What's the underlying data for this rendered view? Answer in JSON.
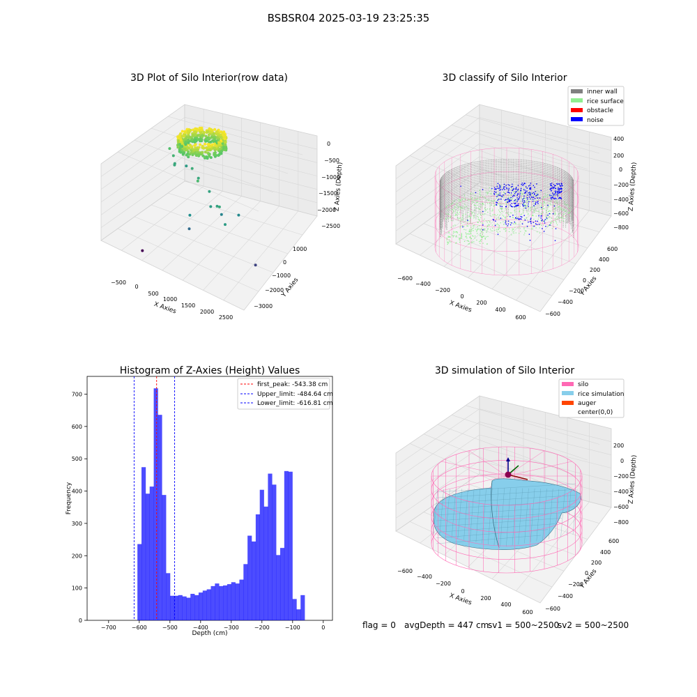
{
  "figure": {
    "suptitle": "BSBSR04 2025-03-19 23:25:35",
    "status_line": {
      "flag": "flag = 0",
      "avg_depth": "avgDepth = 447 cm",
      "sv1": "sv1 = 500~2500",
      "sv2": "sv2 = 500~2500"
    }
  },
  "chart_data": [
    {
      "id": "raw3d",
      "type": "scatter",
      "projection": "3d",
      "title": "3D Plot of Silo Interior(row data)",
      "xlabel": "X Axies",
      "ylabel": "Y Axies",
      "zlabel": "Z Axies (Depth)",
      "xticks": [
        "−500",
        "0",
        "500",
        "1000",
        "1500",
        "2000",
        "2500"
      ],
      "yticks": [
        "1000",
        "0",
        "−1000",
        "−2000",
        "−3000"
      ],
      "zticks": [
        "0",
        "−500",
        "−1000",
        "−1500",
        "−2000",
        "−2500"
      ],
      "xlim": [
        -700,
        2700
      ],
      "ylim": [
        -3300,
        1300
      ],
      "zlim": [
        -2800,
        100
      ],
      "colormap": [
        "#440154",
        "#3b528b",
        "#21908d",
        "#5dc963",
        "#fde725"
      ],
      "points_outliers": [
        {
          "x": -350,
          "y": -300,
          "z": -600,
          "c": 0.7
        },
        {
          "x": -300,
          "y": -200,
          "z": -900,
          "c": 0.65
        },
        {
          "x": -250,
          "y": -250,
          "z": -1200,
          "c": 0.6
        },
        {
          "x": -400,
          "y": 100,
          "z": -1400,
          "c": 0.6
        },
        {
          "x": -200,
          "y": 300,
          "z": -1500,
          "c": 0.55
        },
        {
          "x": 300,
          "y": -500,
          "z": -900,
          "c": 0.62
        },
        {
          "x": 500,
          "y": -600,
          "z": -1100,
          "c": 0.6
        },
        {
          "x": 700,
          "y": -1100,
          "z": -800,
          "c": 0.68
        },
        {
          "x": 900,
          "y": -900,
          "z": -1200,
          "c": 0.58
        },
        {
          "x": 1100,
          "y": -1300,
          "z": -1400,
          "c": 0.55
        },
        {
          "x": 800,
          "y": -1800,
          "z": -1600,
          "c": 0.5
        },
        {
          "x": 1400,
          "y": -1500,
          "z": -1100,
          "c": 0.6
        },
        {
          "x": 1300,
          "y": -1400,
          "z": -1200,
          "c": 0.58
        },
        {
          "x": 1700,
          "y": -1900,
          "z": -1300,
          "c": 0.55
        },
        {
          "x": 1200,
          "y": -900,
          "z": -1900,
          "c": 0.45
        },
        {
          "x": 1500,
          "y": -600,
          "z": -1950,
          "c": 0.47
        },
        {
          "x": 700,
          "y": -1600,
          "z": -2300,
          "c": 0.35
        },
        {
          "x": 2400,
          "y": -1800,
          "z": -2450,
          "c": 0.2
        },
        {
          "x": 200,
          "y": -3100,
          "z": -2600,
          "c": 0.0
        }
      ]
    },
    {
      "id": "classify3d",
      "type": "scatter",
      "projection": "3d",
      "title": "3D classify of Silo Interior",
      "xlabel": "X Axies",
      "ylabel": "Y Axies",
      "zlabel": "Z Axies (Depth)",
      "xticks": [
        "−600",
        "−400",
        "−200",
        "0",
        "200",
        "400",
        "600"
      ],
      "yticks": [
        "600",
        "400",
        "200",
        "0",
        "−200",
        "−400",
        "−600"
      ],
      "zticks": [
        "400",
        "200",
        "0",
        "−200",
        "−400",
        "−600",
        "−800"
      ],
      "legend": [
        {
          "label": "inner wall",
          "color": "#808080"
        },
        {
          "label": "rice surface",
          "color": "#90ee90"
        },
        {
          "label": "obstacle",
          "color": "#ff0000"
        },
        {
          "label": "noise",
          "color": "#0000ff"
        }
      ],
      "legend_placement": "top-right",
      "wireframe_color": "#ff69b4"
    },
    {
      "id": "hist",
      "type": "bar",
      "title": "Histogram of Z-Axies (Height) Values",
      "xlabel": "Depth (cm)",
      "ylabel": "Frequency",
      "xlim": [
        -770,
        30
      ],
      "ylim": [
        0,
        755
      ],
      "xticks": [
        -700,
        -600,
        -500,
        -400,
        -300,
        -200,
        -100,
        0
      ],
      "xtick_labels": [
        "−700",
        "−600",
        "−500",
        "−400",
        "−300",
        "−200",
        "−100",
        "0"
      ],
      "yticks": [
        0,
        100,
        200,
        300,
        400,
        500,
        600,
        700
      ],
      "bar_color": "#0000ff",
      "bar_alpha": 0.7,
      "bin_edges_start": -606,
      "bin_width": 13.3,
      "values": [
        236,
        474,
        392,
        414,
        718,
        636,
        388,
        146,
        76,
        76,
        78,
        74,
        70,
        82,
        78,
        86,
        92,
        96,
        106,
        114,
        106,
        108,
        112,
        118,
        114,
        126,
        174,
        262,
        244,
        328,
        404,
        352,
        454,
        420,
        202,
        224,
        462,
        460,
        66,
        34,
        78
      ],
      "vlines": [
        {
          "x": -543.38,
          "label": "first_peak: -543.38 cm",
          "color": "#ff0000",
          "style": "dashed"
        },
        {
          "x": -484.64,
          "label": "Upper_limit: -484.64 cm",
          "color": "#0000ff",
          "style": "dashed"
        },
        {
          "x": -616.81,
          "label": "Lower_limit: -616.81 cm",
          "color": "#0000ff",
          "style": "dashed"
        }
      ],
      "legend_placement": "top-right"
    },
    {
      "id": "sim3d",
      "type": "surface",
      "projection": "3d",
      "title": "3D simulation of Silo Interior",
      "xlabel": "X Axies",
      "ylabel": "Y Axies",
      "zlabel": "Z Axies (Depth)",
      "xticks": [
        "−600",
        "−400",
        "−200",
        "0",
        "200",
        "400",
        "600"
      ],
      "yticks": [
        "600",
        "400",
        "200",
        "0",
        "−200",
        "−400",
        "−600"
      ],
      "zticks": [
        "200",
        "0",
        "−200",
        "−400",
        "−600",
        "−800"
      ],
      "legend": [
        {
          "label": "silo",
          "color": "#ff69b4"
        },
        {
          "label": "rice simulation",
          "color": "#87ceeb"
        },
        {
          "label": "auger",
          "color": "#ff4500"
        },
        {
          "label": "center(0,0)",
          "color": ""
        }
      ],
      "legend_placement": "top-right"
    }
  ]
}
